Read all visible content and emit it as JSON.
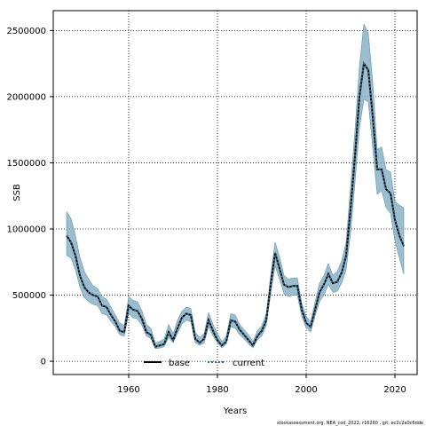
{
  "chart_data": {
    "type": "line",
    "xlabel": "Years",
    "ylabel": "SSB",
    "xlim": [
      1943,
      2025
    ],
    "ylim": [
      -100000,
      2650000
    ],
    "x_ticks": [
      1960,
      1980,
      2000,
      2020
    ],
    "x_tick_labels": [
      "1960",
      "1980",
      "2000",
      "2020"
    ],
    "y_ticks": [
      0,
      500000,
      1000000,
      1500000,
      2000000,
      2500000
    ],
    "y_tick_labels": [
      "0",
      "500000",
      "1000000",
      "1500000",
      "2000000",
      "2500000"
    ],
    "grid": true,
    "legend_position": "bottom-center",
    "colors": {
      "band": "#8ab1c4",
      "band_edge": "#4f8aa6",
      "base": "#000000",
      "current": "#3a6d8a"
    },
    "x": [
      1946,
      1947,
      1948,
      1949,
      1950,
      1951,
      1952,
      1953,
      1954,
      1955,
      1956,
      1957,
      1958,
      1959,
      1960,
      1961,
      1962,
      1963,
      1964,
      1965,
      1966,
      1967,
      1968,
      1969,
      1970,
      1971,
      1972,
      1973,
      1974,
      1975,
      1976,
      1977,
      1978,
      1979,
      1980,
      1981,
      1982,
      1983,
      1984,
      1985,
      1986,
      1987,
      1988,
      1989,
      1990,
      1991,
      1992,
      1993,
      1994,
      1995,
      1996,
      1997,
      1998,
      1999,
      2000,
      2001,
      2002,
      2003,
      2004,
      2005,
      2006,
      2007,
      2008,
      2009,
      2010,
      2011,
      2012,
      2013,
      2014,
      2015,
      2016,
      2017,
      2018,
      2019,
      2020,
      2021,
      2022
    ],
    "series": [
      {
        "name": "base",
        "values": [
          950000,
          900000,
          800000,
          650000,
          560000,
          520000,
          500000,
          490000,
          420000,
          410000,
          350000,
          300000,
          230000,
          220000,
          420000,
          390000,
          380000,
          320000,
          220000,
          200000,
          110000,
          120000,
          130000,
          220000,
          160000,
          250000,
          330000,
          360000,
          350000,
          170000,
          140000,
          170000,
          310000,
          230000,
          160000,
          120000,
          150000,
          310000,
          300000,
          240000,
          200000,
          160000,
          120000,
          190000,
          230000,
          310000,
          580000,
          820000,
          700000,
          580000,
          560000,
          570000,
          570000,
          390000,
          290000,
          260000,
          390000,
          520000,
          580000,
          660000,
          590000,
          600000,
          670000,
          800000,
          1150000,
          1550000,
          2000000,
          2250000,
          2200000,
          1850000,
          1450000,
          1450000,
          1300000,
          1270000,
          1070000,
          950000,
          870000
        ]
      },
      {
        "name": "current",
        "values": [
          950000,
          900000,
          800000,
          650000,
          560000,
          520000,
          500000,
          490000,
          420000,
          410000,
          350000,
          300000,
          230000,
          220000,
          420000,
          390000,
          380000,
          320000,
          220000,
          200000,
          110000,
          120000,
          130000,
          220000,
          160000,
          250000,
          330000,
          360000,
          350000,
          170000,
          140000,
          170000,
          310000,
          230000,
          160000,
          120000,
          150000,
          310000,
          300000,
          240000,
          200000,
          160000,
          120000,
          190000,
          230000,
          310000,
          580000,
          820000,
          700000,
          580000,
          560000,
          570000,
          570000,
          390000,
          290000,
          260000,
          390000,
          520000,
          580000,
          660000,
          590000,
          600000,
          670000,
          800000,
          1150000,
          1550000,
          2000000,
          2250000,
          2200000,
          1850000,
          1450000,
          1450000,
          1300000,
          1270000,
          1070000,
          950000,
          870000
        ]
      }
    ],
    "band_upper": [
      1130000,
      1080000,
      950000,
      790000,
      680000,
      620000,
      570000,
      550000,
      490000,
      470000,
      410000,
      350000,
      290000,
      270000,
      490000,
      460000,
      450000,
      380000,
      280000,
      250000,
      140000,
      150000,
      170000,
      280000,
      210000,
      310000,
      380000,
      410000,
      400000,
      220000,
      180000,
      210000,
      370000,
      280000,
      210000,
      150000,
      190000,
      360000,
      350000,
      280000,
      240000,
      200000,
      150000,
      230000,
      270000,
      360000,
      650000,
      900000,
      790000,
      650000,
      620000,
      630000,
      630000,
      440000,
      340000,
      300000,
      450000,
      590000,
      650000,
      740000,
      650000,
      680000,
      760000,
      900000,
      1320000,
      1750000,
      2230000,
      2550000,
      2480000,
      2110000,
      1600000,
      1620000,
      1450000,
      1430000,
      1210000,
      1180000,
      1160000
    ],
    "band_lower": [
      800000,
      780000,
      690000,
      560000,
      480000,
      450000,
      430000,
      420000,
      360000,
      350000,
      300000,
      260000,
      200000,
      190000,
      360000,
      330000,
      320000,
      270000,
      190000,
      170000,
      95000,
      100000,
      110000,
      180000,
      140000,
      210000,
      280000,
      310000,
      300000,
      140000,
      120000,
      140000,
      260000,
      190000,
      140000,
      100000,
      130000,
      260000,
      250000,
      200000,
      170000,
      130000,
      100000,
      160000,
      190000,
      270000,
      510000,
      720000,
      620000,
      510000,
      490000,
      500000,
      500000,
      340000,
      250000,
      220000,
      340000,
      450000,
      500000,
      580000,
      520000,
      530000,
      590000,
      690000,
      970000,
      1350000,
      1760000,
      1980000,
      1960000,
      1610000,
      1260000,
      1290000,
      1160000,
      1120000,
      910000,
      780000,
      660000
    ]
  },
  "legend": {
    "base_label": "base",
    "current_label": "current"
  },
  "footer_text": "stockassessment.org, NEA_cod_2022, r16260 , git: ec2c2a0c6dde"
}
